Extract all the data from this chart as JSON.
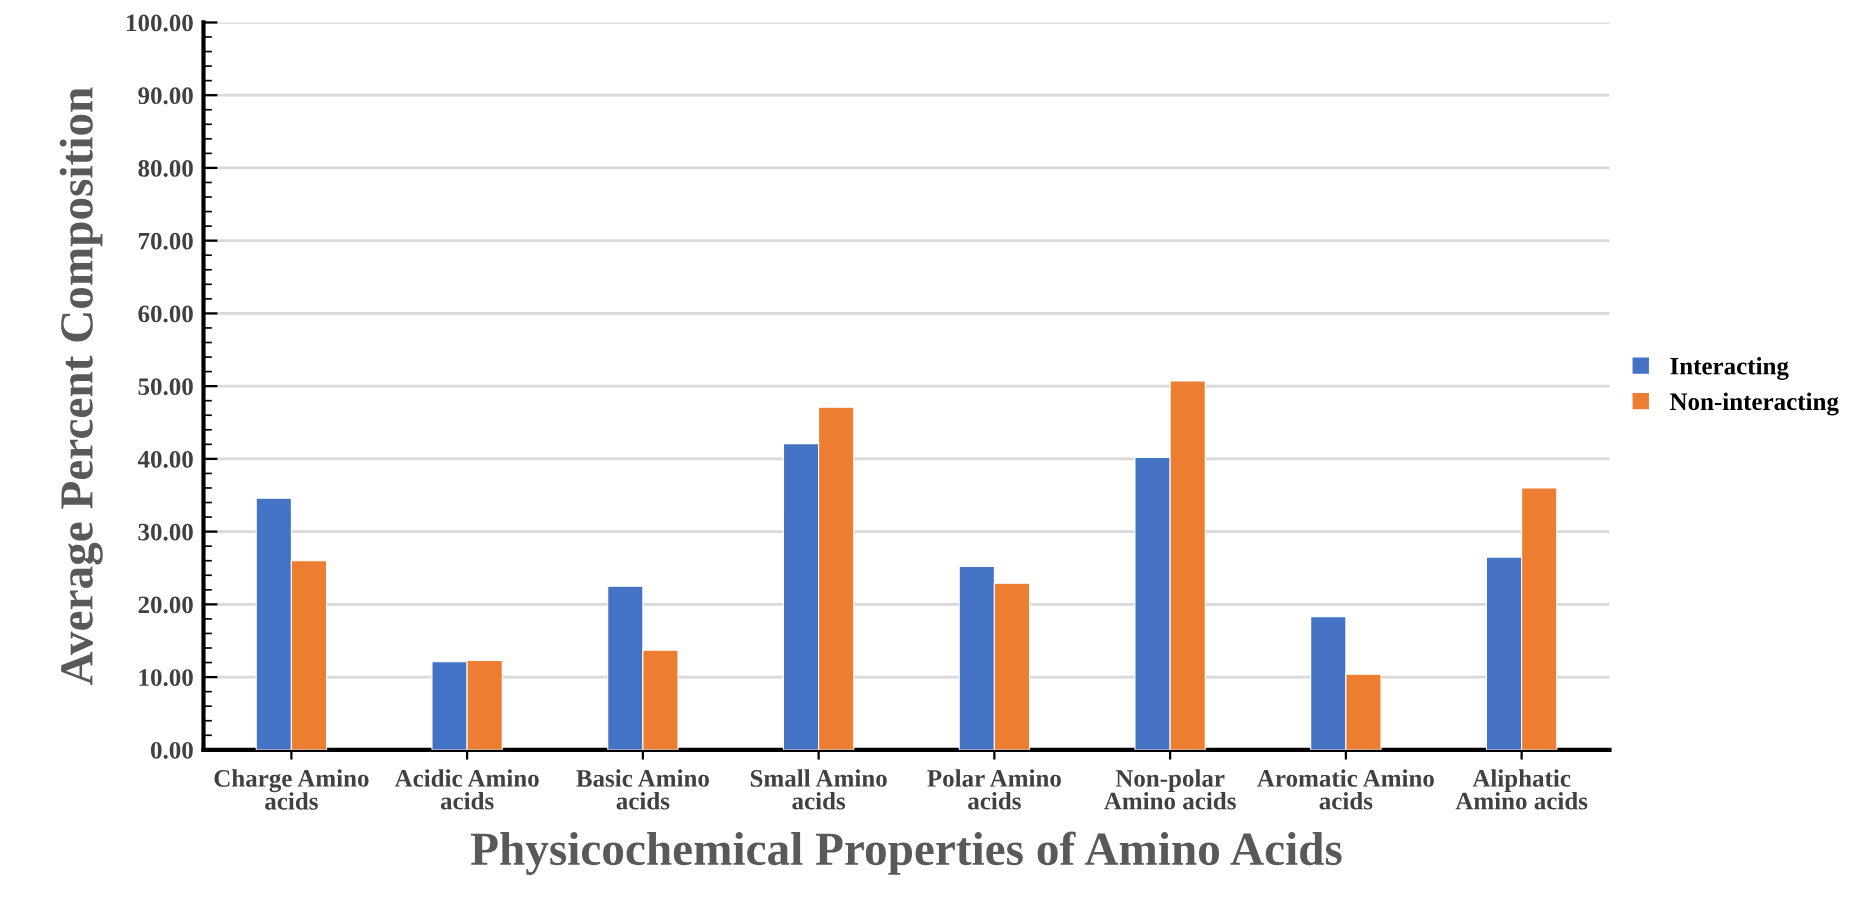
{
  "chart_data": {
    "type": "bar",
    "xlabel": "Physicochemical Properties of Amino Acids",
    "ylabel": "Average Percent Composition",
    "categories": [
      "Charge Amino acids",
      "Acidic Amino acids",
      "Basic Amino acids",
      "Small Amino acids",
      "Polar Amino acids",
      "Non-polar Amino acids",
      "Aromatic Amino acids",
      "Aliphatic Amino acids"
    ],
    "series": [
      {
        "name": "Interacting",
        "color": "#4472c4",
        "values": [
          34.6,
          12.1,
          22.5,
          42.1,
          25.2,
          40.2,
          18.3,
          26.5
        ]
      },
      {
        "name": "Non-interacting",
        "color": "#ed7d31",
        "values": [
          26.0,
          12.3,
          13.7,
          47.1,
          22.9,
          50.7,
          10.4,
          36.0
        ]
      }
    ],
    "ylim": [
      0,
      100
    ],
    "yticks": [
      {
        "value": 0,
        "label": "0.00"
      },
      {
        "value": 10,
        "label": "10.00"
      },
      {
        "value": 20,
        "label": "20.00"
      },
      {
        "value": 30,
        "label": "30.00"
      },
      {
        "value": 40,
        "label": "40.00"
      },
      {
        "value": 50,
        "label": "50.00"
      },
      {
        "value": 60,
        "label": "60.00"
      },
      {
        "value": 70,
        "label": "70.00"
      },
      {
        "value": 80,
        "label": "80.00"
      },
      {
        "value": 90,
        "label": "90.00"
      },
      {
        "value": 100,
        "label": "100.00"
      }
    ],
    "grid": "y",
    "legend": "right"
  }
}
